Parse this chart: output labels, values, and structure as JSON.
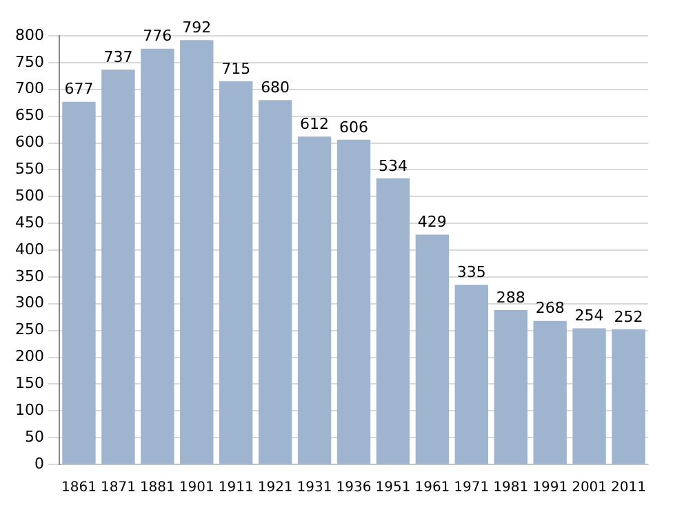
{
  "chart_data": {
    "type": "bar",
    "categories": [
      "1861",
      "1871",
      "1881",
      "1901",
      "1911",
      "1921",
      "1931",
      "1936",
      "1951",
      "1961",
      "1971",
      "1981",
      "1991",
      "2001",
      "2011"
    ],
    "values": [
      677,
      737,
      776,
      792,
      715,
      680,
      612,
      606,
      534,
      429,
      335,
      288,
      268,
      254,
      252
    ],
    "color": "#9fb4cf",
    "ylim": [
      0,
      800
    ],
    "yticks": [
      0,
      50,
      100,
      150,
      200,
      250,
      300,
      350,
      400,
      450,
      500,
      550,
      600,
      650,
      700,
      750,
      800
    ],
    "grid": "y",
    "data_labels": true,
    "legend": false
  }
}
